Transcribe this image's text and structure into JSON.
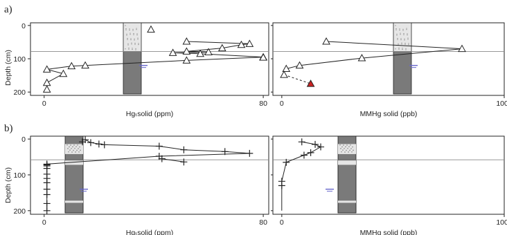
{
  "colors": {
    "ink": "#222222",
    "red_marker": "#cc2222",
    "water_table": "#6666cc",
    "core_dark": "#7a7a7a",
    "core_light": "#e6e6e6"
  },
  "panel_labels": [
    "a)",
    "b)"
  ],
  "y_axis": {
    "label": "Depth (cm)",
    "ticks": [
      "0",
      "100",
      "200"
    ],
    "lim": [
      210,
      -8
    ],
    "reversed": true
  },
  "chart_data": [
    {
      "type": "scatter",
      "panel": "a",
      "marker": "triangle",
      "xlabel": "Hgₜsolid (ppm)",
      "xlim": [
        -5,
        82
      ],
      "xticks": [
        "0",
        "80"
      ],
      "points": [
        [
          39,
          12
        ],
        [
          52,
          48
        ],
        [
          75,
          55
        ],
        [
          72,
          58
        ],
        [
          65,
          68
        ],
        [
          52,
          78
        ],
        [
          60,
          80
        ],
        [
          47,
          82
        ],
        [
          57,
          85
        ],
        [
          80,
          95
        ],
        [
          80,
          96
        ],
        [
          52,
          105
        ],
        [
          15,
          120
        ],
        [
          10,
          122
        ],
        [
          1,
          132
        ],
        [
          7,
          145
        ],
        [
          1,
          172
        ],
        [
          1,
          192
        ]
      ],
      "line": [
        [
          52,
          48
        ],
        [
          75,
          55
        ],
        [
          72,
          58
        ],
        [
          65,
          68
        ],
        [
          52,
          78
        ],
        [
          60,
          80
        ],
        [
          47,
          82
        ],
        [
          57,
          85
        ],
        [
          80,
          95
        ],
        [
          52,
          105
        ],
        [
          15,
          120
        ],
        [
          10,
          122
        ],
        [
          1,
          132
        ],
        [
          7,
          145
        ],
        [
          1,
          172
        ]
      ],
      "horizontal_line_depth": 78
    },
    {
      "type": "scatter",
      "panel": "a",
      "marker": "triangle",
      "xlabel": "MMHg solid (ppb)",
      "xlim": [
        -40,
        1000
      ],
      "xticks": [
        "0",
        "1000"
      ],
      "points": [
        [
          200,
          48
        ],
        [
          810,
          70
        ],
        [
          360,
          98
        ],
        [
          80,
          120
        ],
        [
          20,
          130
        ],
        [
          10,
          148
        ]
      ],
      "highlight": {
        "x": 130,
        "y": 175,
        "color": "#cc2222"
      },
      "line": [
        [
          200,
          48
        ],
        [
          810,
          70
        ],
        [
          360,
          98
        ],
        [
          80,
          120
        ],
        [
          20,
          130
        ]
      ],
      "dashed": [
        [
          10,
          148
        ],
        [
          130,
          175
        ]
      ],
      "horizontal_line_depth": 78
    },
    {
      "type": "scatter",
      "panel": "b",
      "marker": "plus",
      "xlabel": "Hgₜsolid (ppm)",
      "xlim": [
        -5,
        82
      ],
      "xticks": [
        "0",
        "80"
      ],
      "points": [
        [
          15,
          2
        ],
        [
          14,
          8
        ],
        [
          17,
          10
        ],
        [
          20,
          14
        ],
        [
          22,
          16
        ],
        [
          42,
          20
        ],
        [
          51,
          30
        ],
        [
          66,
          35
        ],
        [
          75,
          40
        ],
        [
          42,
          48
        ],
        [
          43,
          55
        ],
        [
          51,
          64
        ],
        [
          1,
          70
        ],
        [
          1,
          72
        ],
        [
          1,
          75
        ],
        [
          1,
          82
        ],
        [
          1,
          98
        ],
        [
          1,
          110
        ],
        [
          1,
          122
        ],
        [
          1,
          140
        ],
        [
          1,
          155
        ],
        [
          1,
          180
        ],
        [
          1,
          200
        ]
      ],
      "line": [
        [
          15,
          2
        ],
        [
          17,
          10
        ],
        [
          20,
          14
        ],
        [
          22,
          16
        ],
        [
          42,
          20
        ],
        [
          51,
          30
        ],
        [
          66,
          35
        ],
        [
          75,
          40
        ],
        [
          42,
          48
        ],
        [
          1,
          70
        ],
        [
          1,
          72
        ],
        [
          1,
          75
        ],
        [
          1,
          82
        ],
        [
          1,
          98
        ],
        [
          1,
          110
        ],
        [
          1,
          122
        ],
        [
          1,
          140
        ],
        [
          1,
          155
        ],
        [
          1,
          180
        ],
        [
          1,
          200
        ]
      ],
      "line2": [
        [
          43,
          55
        ],
        [
          51,
          64
        ]
      ],
      "horizontal_line_depth": 58
    },
    {
      "type": "scatter",
      "panel": "b",
      "marker": "plus",
      "xlabel": "MMHg solid (ppb)",
      "xlim": [
        -40,
        1000
      ],
      "xticks": [
        "0",
        "1000"
      ],
      "points": [
        [
          90,
          8
        ],
        [
          150,
          15
        ],
        [
          175,
          22
        ],
        [
          130,
          38
        ],
        [
          100,
          45
        ],
        [
          20,
          65
        ],
        [
          0,
          118
        ],
        [
          0,
          130
        ]
      ],
      "line": [
        [
          90,
          8
        ],
        [
          150,
          15
        ],
        [
          175,
          22
        ],
        [
          130,
          38
        ],
        [
          100,
          45
        ],
        [
          20,
          65
        ],
        [
          0,
          118
        ],
        [
          0,
          200
        ]
      ],
      "horizontal_line_depth": 58
    }
  ]
}
